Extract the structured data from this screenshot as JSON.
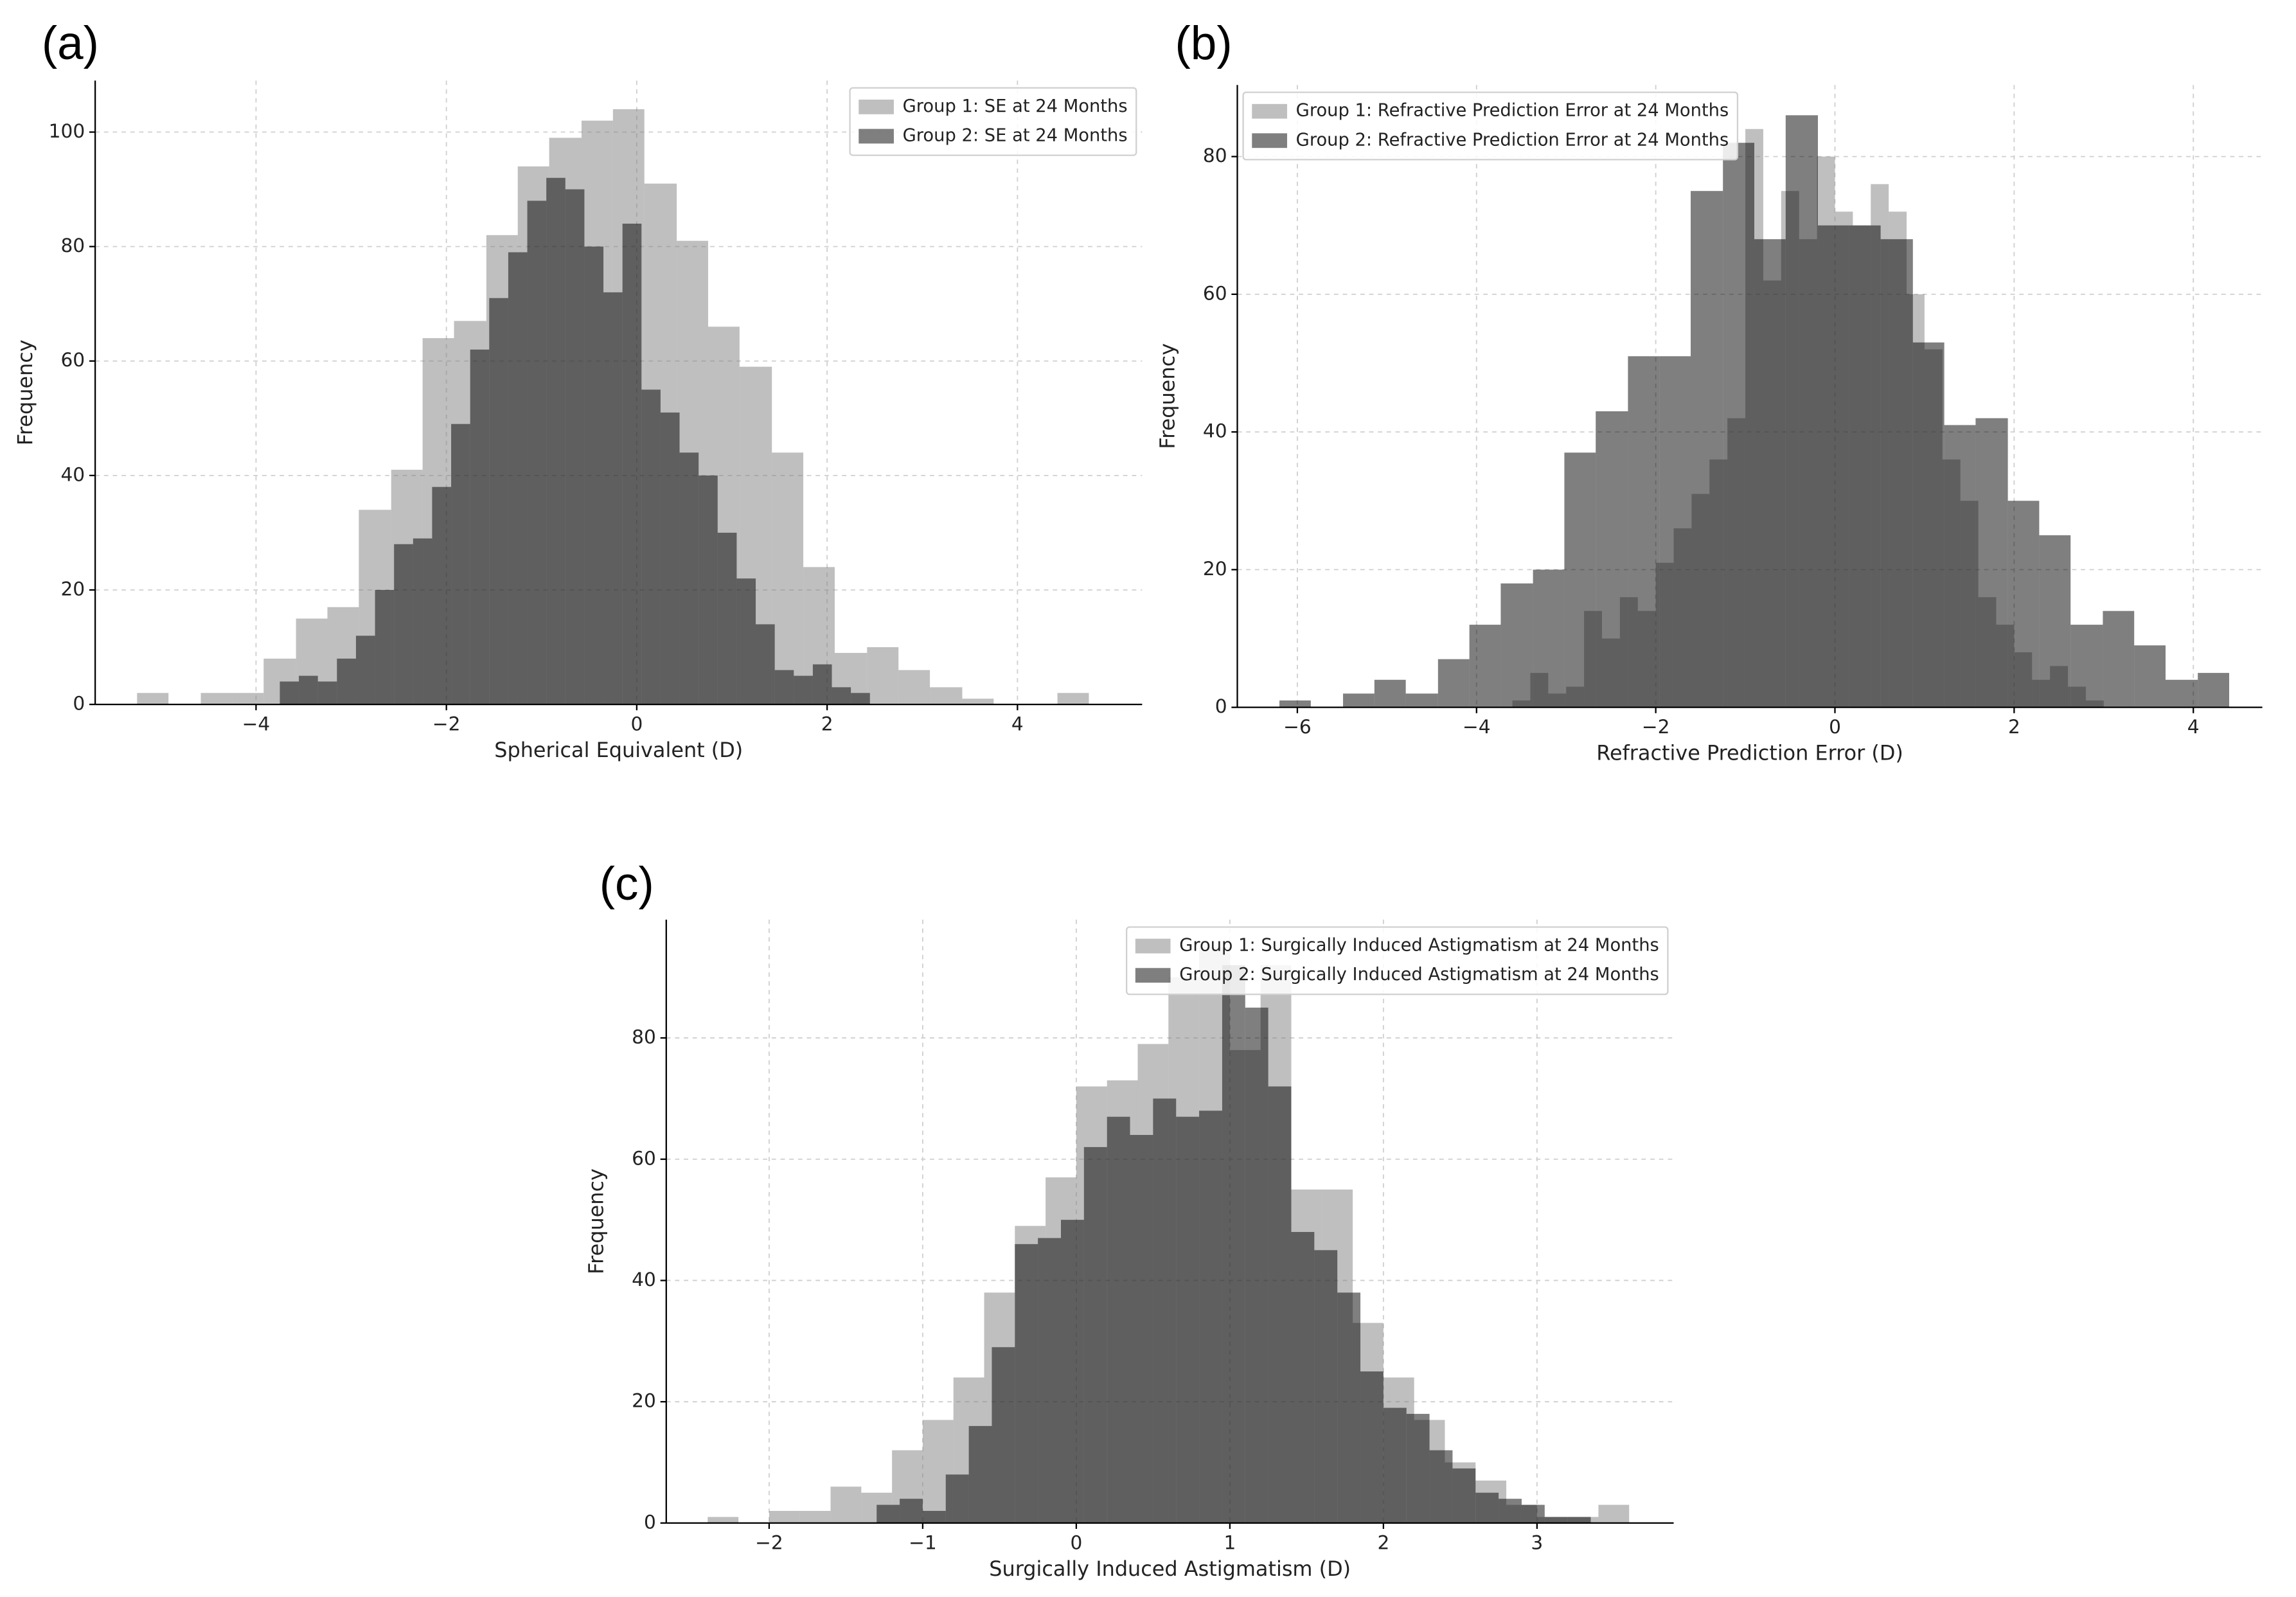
{
  "chart_data": [
    {
      "type": "histogram",
      "panel_label": "(a)",
      "x_label": "Spherical Equivalent (D)",
      "y_label": "Frequency",
      "xlim": [
        -5.69,
        5.31
      ],
      "ylim": [
        0,
        109
      ],
      "xticks": [
        {
          "value": -4,
          "label": "−4"
        },
        {
          "value": -2,
          "label": "−2"
        },
        0,
        2,
        4
      ],
      "yticks": [
        0,
        20,
        40,
        60,
        80,
        100
      ],
      "grid": true,
      "legend": "upper right",
      "series": [
        {
          "name": "Group 1: SE at 24 Months",
          "color": "#808080",
          "alpha": 0.5,
          "bins": [
            -5.25,
            -4.92,
            -4.58,
            -4.25,
            -3.92,
            -3.58,
            -3.25,
            -2.92,
            -2.58,
            -2.25,
            -1.92,
            -1.58,
            -1.25,
            -0.92,
            -0.58,
            -0.25,
            0.08,
            0.42,
            0.75,
            1.08,
            1.42,
            1.75,
            2.08,
            2.42,
            2.75,
            3.08,
            3.42,
            3.75,
            4.08,
            4.42,
            4.75
          ],
          "values": [
            2,
            0,
            2,
            2,
            8,
            15,
            17,
            34,
            41,
            64,
            67,
            82,
            94,
            99,
            102,
            104,
            91,
            81,
            66,
            59,
            44,
            24,
            9,
            10,
            6,
            3,
            1,
            0,
            0,
            2
          ]
        },
        {
          "name": "Group 2: SE at 24 Months",
          "color": "#000000",
          "alpha": 0.5,
          "bins": [
            -3.75,
            -3.55,
            -3.35,
            -3.15,
            -2.95,
            -2.75,
            -2.55,
            -2.35,
            -2.15,
            -1.95,
            -1.75,
            -1.55,
            -1.35,
            -1.15,
            -0.95,
            -0.75,
            -0.55,
            -0.35,
            -0.15,
            0.05,
            0.25,
            0.45,
            0.65,
            0.85,
            1.05,
            1.25,
            1.45,
            1.65,
            1.85,
            2.05,
            2.25,
            2.45
          ],
          "values": [
            4,
            5,
            4,
            8,
            12,
            20,
            28,
            29,
            38,
            49,
            62,
            71,
            79,
            88,
            92,
            90,
            80,
            72,
            84,
            55,
            51,
            44,
            40,
            30,
            22,
            14,
            6,
            5,
            7,
            3,
            2
          ]
        }
      ]
    },
    {
      "type": "histogram",
      "panel_label": "(b)",
      "x_label": "Refractive Prediction Error (D)",
      "y_label": "Frequency",
      "xlim": [
        -6.67,
        4.77
      ],
      "ylim": [
        0,
        90.4
      ],
      "xticks": [
        {
          "value": -6,
          "label": "−6"
        },
        {
          "value": -4,
          "label": "−4"
        },
        {
          "value": -2,
          "label": "−2"
        },
        0,
        2,
        4
      ],
      "yticks": [
        0,
        20,
        40,
        60,
        80
      ],
      "grid": true,
      "legend": "upper left",
      "series": [
        {
          "name": "Group 1: Refractive Prediction Error at 24 Months",
          "color": "#808080",
          "alpha": 0.5,
          "bins": [
            -3.6,
            -3.4,
            -3.2,
            -3.0,
            -2.8,
            -2.6,
            -2.4,
            -2.2,
            -2.0,
            -1.8,
            -1.6,
            -1.4,
            -1.2,
            -1.0,
            -0.8,
            -0.6,
            -0.4,
            -0.2,
            0.0,
            0.2,
            0.4,
            0.6,
            0.8,
            1.0,
            1.2,
            1.4,
            1.6,
            1.8,
            2.0,
            2.2,
            2.4,
            2.6,
            2.8,
            3.0
          ],
          "values": [
            1,
            5,
            2,
            3,
            14,
            10,
            16,
            14,
            21,
            26,
            31,
            36,
            42,
            84,
            62,
            75,
            68,
            80,
            72,
            70,
            76,
            72,
            60,
            52,
            36,
            30,
            16,
            12,
            8,
            4,
            6,
            3,
            1
          ]
        },
        {
          "name": "Group 2: Refractive Prediction Error at 24 Months",
          "color": "#000000",
          "alpha": 0.5,
          "bins": [
            -6.2,
            -5.85,
            -5.49,
            -5.14,
            -4.79,
            -4.43,
            -4.08,
            -3.73,
            -3.37,
            -3.02,
            -2.67,
            -2.31,
            -1.96,
            -1.61,
            -1.25,
            -0.9,
            -0.55,
            -0.19,
            0.16,
            0.51,
            0.87,
            1.22,
            1.57,
            1.93,
            2.28,
            2.63,
            2.99,
            3.34,
            3.69,
            4.05,
            4.4
          ],
          "values": [
            1,
            0,
            2,
            4,
            2,
            7,
            12,
            18,
            20,
            37,
            43,
            51,
            51,
            75,
            82,
            68,
            86,
            70,
            70,
            68,
            53,
            41,
            42,
            30,
            25,
            12,
            14,
            9,
            4,
            5
          ]
        }
      ]
    },
    {
      "type": "histogram",
      "panel_label": "(c)",
      "x_label": "Surgically Induced Astigmatism (D)",
      "y_label": "Frequency",
      "xlim": [
        -2.67,
        3.89
      ],
      "ylim": [
        0,
        99.5
      ],
      "xticks": [
        {
          "value": -2,
          "label": "−2"
        },
        {
          "value": -1,
          "label": "−1"
        },
        0,
        1,
        2,
        3
      ],
      "yticks": [
        0,
        20,
        40,
        60,
        80
      ],
      "grid": true,
      "legend": "upper right",
      "series": [
        {
          "name": "Group 1: Surgically Induced Astigmatism at 24 Months",
          "color": "#808080",
          "alpha": 0.5,
          "bins": [
            -2.4,
            -2.2,
            -2.0,
            -1.8,
            -1.6,
            -1.4,
            -1.2,
            -1.0,
            -0.8,
            -0.6,
            -0.4,
            -0.2,
            0.0,
            0.2,
            0.4,
            0.6,
            0.8,
            1.0,
            1.2,
            1.4,
            1.6,
            1.8,
            2.0,
            2.2,
            2.4,
            2.6,
            2.8,
            3.0,
            3.2,
            3.4,
            3.6
          ],
          "values": [
            1,
            0,
            2,
            2,
            6,
            5,
            12,
            17,
            24,
            38,
            49,
            57,
            72,
            73,
            79,
            90,
            95,
            78,
            92,
            55,
            55,
            33,
            24,
            17,
            10,
            7,
            3,
            1,
            1,
            3
          ]
        },
        {
          "name": "Group 2: Surgically Induced Astigmatism at 24 Months",
          "color": "#000000",
          "alpha": 0.5,
          "bins": [
            -1.3,
            -1.15,
            -1.0,
            -0.85,
            -0.7,
            -0.55,
            -0.4,
            -0.25,
            -0.1,
            0.05,
            0.2,
            0.35,
            0.5,
            0.65,
            0.8,
            0.95,
            1.1,
            1.25,
            1.4,
            1.55,
            1.7,
            1.85,
            2.0,
            2.15,
            2.3,
            2.45,
            2.6,
            2.75,
            2.9,
            3.05,
            3.2,
            3.35
          ],
          "values": [
            3,
            4,
            2,
            8,
            16,
            29,
            46,
            47,
            50,
            62,
            67,
            64,
            70,
            67,
            68,
            92,
            85,
            72,
            48,
            45,
            38,
            25,
            19,
            18,
            12,
            9,
            5,
            4,
            3,
            1,
            1
          ]
        }
      ]
    }
  ]
}
